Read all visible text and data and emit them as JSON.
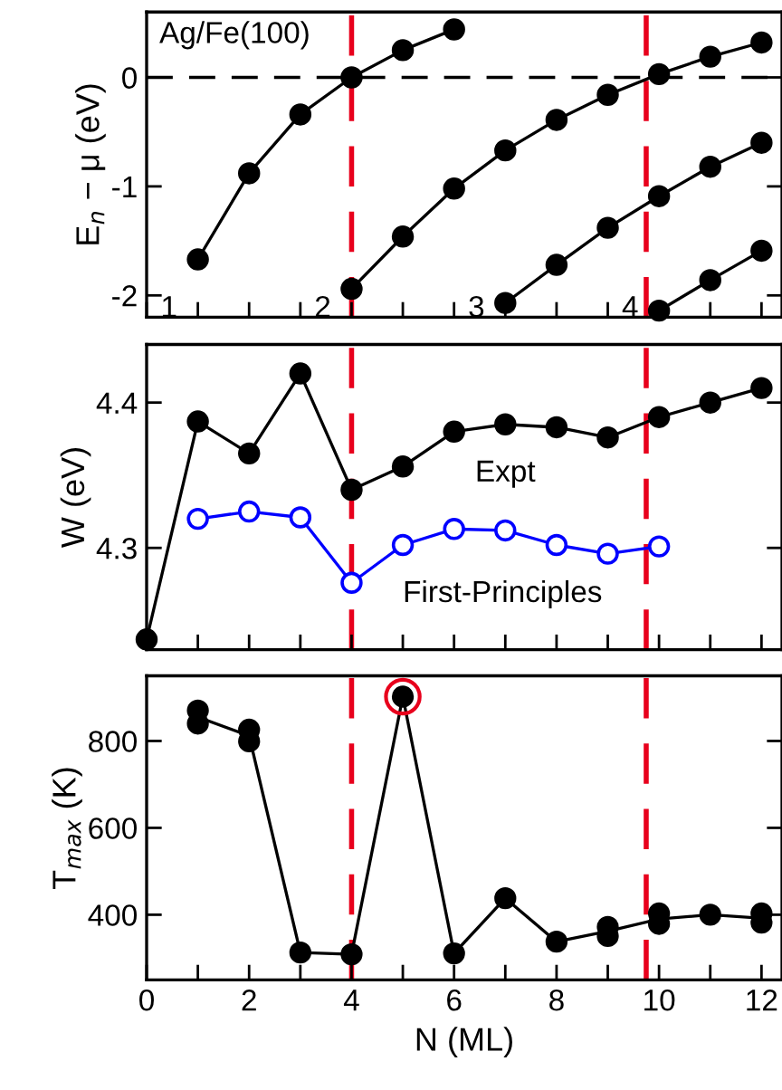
{
  "chart_data": [
    {
      "type": "line",
      "ylabel": "E$_{n}$ − μ (eV)",
      "xlim": [
        0,
        12.4
      ],
      "ylim": [
        -2.2,
        0.6
      ],
      "tick_labels": "y",
      "marker": "circle",
      "xticks": [
        {
          "value": 0,
          "label": null
        },
        {
          "value": 1,
          "label": null
        },
        {
          "value": 2,
          "label": null
        },
        {
          "value": 3,
          "label": null
        },
        {
          "value": 4,
          "label": null
        },
        {
          "value": 5,
          "label": null
        },
        {
          "value": 6,
          "label": null
        },
        {
          "value": 7,
          "label": null
        },
        {
          "value": 8,
          "label": null
        },
        {
          "value": 9,
          "label": null
        },
        {
          "value": 10,
          "label": null
        },
        {
          "value": 11,
          "label": null
        },
        {
          "value": 12,
          "label": null
        }
      ],
      "yticks": [
        -2,
        -1,
        0
      ],
      "series": [
        {
          "color": "#000000",
          "x": [
            1,
            2,
            3,
            4,
            5,
            6
          ],
          "values": [
            -1.67,
            -0.88,
            -0.34,
            0,
            0.25,
            0.44
          ]
        },
        {
          "color": "#000000",
          "x": [
            4,
            5,
            6,
            7,
            8,
            9,
            10,
            11,
            12
          ],
          "values": [
            -1.94,
            -1.46,
            -1.02,
            -0.67,
            -0.39,
            -0.16,
            0.03,
            0.19,
            0.32
          ]
        },
        {
          "color": "#000000",
          "x": [
            7,
            8,
            9,
            10,
            11,
            12
          ],
          "values": [
            -2.07,
            -1.72,
            -1.38,
            -1.09,
            -0.82,
            -0.6
          ]
        },
        {
          "color": "#000000",
          "x": [
            10,
            11,
            12
          ],
          "values": [
            -2.14,
            -1.86,
            -1.59
          ]
        }
      ],
      "ref_lines": [
        {
          "axis": "y",
          "value": 0,
          "color": "#000000",
          "line_style": "dashed"
        },
        {
          "axis": "x",
          "value": 4,
          "color": "#e8001c",
          "line_style": "dashed"
        },
        {
          "axis": "x",
          "value": 9.75,
          "color": "#e8001c",
          "line_style": "dashed"
        }
      ],
      "annotations": [
        "Ag/Fe(100)",
        "1",
        "2",
        "3",
        "4"
      ]
    },
    {
      "type": "line",
      "ylabel": "W (eV)",
      "xlim": [
        0,
        12.4
      ],
      "ylim": [
        4.23,
        4.44
      ],
      "tick_labels": "y",
      "xticks": [
        {
          "value": 0,
          "label": null
        },
        {
          "value": 1,
          "label": null
        },
        {
          "value": 2,
          "label": null
        },
        {
          "value": 3,
          "label": null
        },
        {
          "value": 4,
          "label": null
        },
        {
          "value": 5,
          "label": null
        },
        {
          "value": 6,
          "label": null
        },
        {
          "value": 7,
          "label": null
        },
        {
          "value": 8,
          "label": null
        },
        {
          "value": 9,
          "label": null
        },
        {
          "value": 10,
          "label": null
        },
        {
          "value": 11,
          "label": null
        },
        {
          "value": 12,
          "label": null
        }
      ],
      "yticks": [
        4.3,
        4.4
      ],
      "series": [
        {
          "name": "Expt",
          "color": "#000000",
          "marker": "circle",
          "x": [
            0,
            1,
            2,
            3,
            4,
            5,
            6,
            7,
            8,
            9,
            10,
            11,
            12
          ],
          "values": [
            4.237,
            4.387,
            4.365,
            4.42,
            4.34,
            4.356,
            4.38,
            4.385,
            4.383,
            4.376,
            4.39,
            4.4,
            4.41
          ]
        },
        {
          "name": "First-Principles",
          "color": "#0000ff",
          "marker": "open circle",
          "x": [
            1,
            2,
            3,
            4,
            5,
            6,
            7,
            8,
            9,
            10
          ],
          "values": [
            4.32,
            4.325,
            4.321,
            4.276,
            4.302,
            4.313,
            4.312,
            4.302,
            4.296,
            4.301
          ]
        }
      ],
      "ref_lines": [
        {
          "axis": "x",
          "value": 4,
          "color": "#e8001c",
          "line_style": "dashed"
        },
        {
          "axis": "x",
          "value": 9.75,
          "color": "#e8001c",
          "line_style": "dashed"
        }
      ]
    },
    {
      "type": "line",
      "xlabel": "N (ML)",
      "ylabel": "T$_{max}$ (K)",
      "xlim": [
        0,
        12.4
      ],
      "ylim": [
        250,
        950
      ],
      "xticks": [
        0,
        {
          "value": 1,
          "label": null
        },
        2,
        {
          "value": 3,
          "label": null
        },
        4,
        {
          "value": 5,
          "label": null
        },
        6,
        {
          "value": 7,
          "label": null
        },
        8,
        {
          "value": 9,
          "label": null
        },
        10,
        {
          "value": 11,
          "label": null
        },
        12
      ],
      "yticks": [
        400,
        600,
        800
      ],
      "series": [
        {
          "color": "#000000",
          "marker": "none",
          "x": [
            1,
            2,
            3,
            4,
            5,
            6,
            7,
            8,
            9,
            10,
            11,
            12
          ],
          "values": [
            855,
            812,
            313,
            309,
            902,
            311,
            438,
            338,
            362,
            390,
            400,
            392
          ]
        },
        {
          "type": "scatter",
          "color": "#000000",
          "marker": "circle",
          "x": [
            1,
            1,
            2,
            2,
            3,
            4,
            5,
            6,
            7,
            8,
            9,
            9,
            10,
            10,
            11,
            12,
            12
          ],
          "values": [
            870,
            840,
            826,
            799,
            313,
            309,
            902,
            311,
            438,
            338,
            372,
            351,
            403,
            379,
            400,
            403,
            382
          ]
        },
        {
          "type": "scatter",
          "color": "#e8001c",
          "marker": "open circle",
          "x": [
            5
          ],
          "values": [
            902
          ]
        }
      ],
      "ref_lines": [
        {
          "axis": "x",
          "value": 4,
          "color": "#e8001c",
          "line_style": "dashed"
        },
        {
          "axis": "x",
          "value": 9.75,
          "color": "#e8001c",
          "line_style": "dashed"
        }
      ]
    }
  ]
}
